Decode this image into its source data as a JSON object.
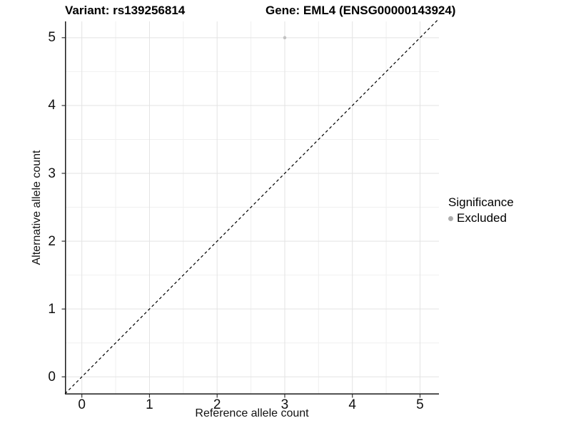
{
  "title": {
    "variant": "Variant: rs139256814",
    "gene": "Gene: EML4 (ENSG00000143924)"
  },
  "axes": {
    "x_label": "Reference allele count",
    "y_label": "Alternative allele count"
  },
  "legend": {
    "title": "Significance",
    "items": [
      {
        "label": "Excluded",
        "color": "#adadad"
      }
    ]
  },
  "colors": {
    "background": "#ffffff",
    "grid_major": "#e3e3e3",
    "grid_minor": "#f0f0f0",
    "axis_line": "#1a1a1a",
    "tick_mark": "#333333",
    "tick_text": "#111111",
    "reference_line": "#000000",
    "point": "#c2c2c2"
  },
  "chart_data": {
    "type": "scatter",
    "title": "Variant: rs139256814    Gene: EML4 (ENSG00000143924)",
    "xlabel": "Reference allele count",
    "ylabel": "Alternative allele count",
    "xlim": [
      -0.25,
      5.28
    ],
    "ylim": [
      -0.26,
      5.24
    ],
    "xticks": [
      0,
      1,
      2,
      3,
      4,
      5
    ],
    "yticks": [
      0,
      1,
      2,
      3,
      4,
      5
    ],
    "x_minor_ticks": [
      0.5,
      1.5,
      2.5,
      3.5,
      4.5
    ],
    "y_minor_ticks": [
      0.5,
      1.5,
      2.5,
      3.5,
      4.5
    ],
    "grid": true,
    "legend_position": "right",
    "series": [
      {
        "name": "Excluded",
        "points": [
          {
            "x": 3,
            "y": 5
          }
        ]
      }
    ],
    "reference_line": {
      "kind": "abline",
      "slope": 1,
      "intercept": 0,
      "style": "dashed"
    }
  }
}
